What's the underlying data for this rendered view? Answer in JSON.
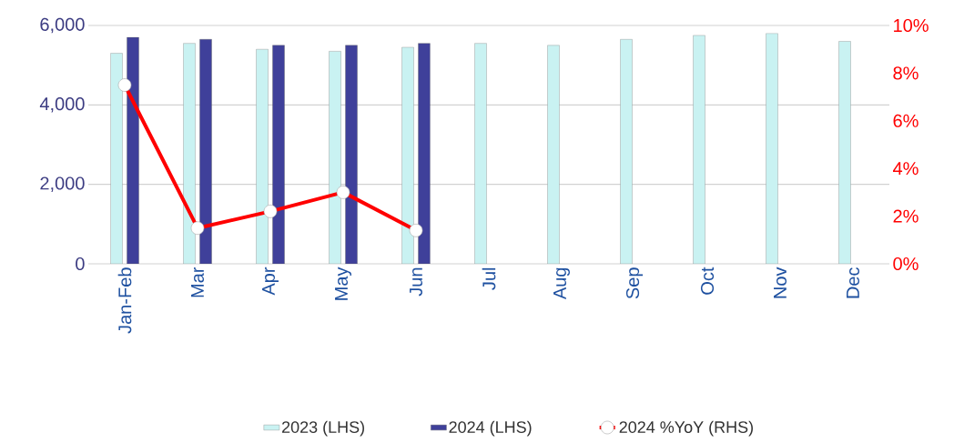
{
  "chart_data": {
    "type": "bar",
    "categories": [
      "Jan-Feb",
      "Mar",
      "Apr",
      "May",
      "Jun",
      "Jul",
      "Aug",
      "Sep",
      "Oct",
      "Nov",
      "Dec"
    ],
    "series": [
      {
        "name": "2023 (LHS)",
        "color": "#c9f2f2",
        "values": [
          5300,
          5550,
          5400,
          5350,
          5450,
          5550,
          5500,
          5650,
          5750,
          5800,
          5600
        ]
      },
      {
        "name": "2024 (LHS)",
        "color": "#3f409a",
        "values": [
          5700,
          5650,
          5500,
          5500,
          5550,
          null,
          null,
          null,
          null,
          null,
          null
        ]
      },
      {
        "name": "2024 %YoY (RHS)",
        "type": "line",
        "axis": "y2",
        "color": "#ff0000",
        "marker": "circle",
        "values": [
          7.5,
          1.5,
          2.2,
          3.0,
          1.4,
          null,
          null,
          null,
          null,
          null,
          null
        ]
      }
    ],
    "ylim": [
      0,
      6000
    ],
    "yticks": [
      0,
      {
        "value": 2000,
        "label": "2,000"
      },
      {
        "value": 4000,
        "label": "4,000"
      },
      {
        "value": 6000,
        "label": "6,000"
      }
    ],
    "y2lim": [
      0,
      10
    ],
    "y2ticks": [
      {
        "value": 0,
        "label": "0%"
      },
      {
        "value": 2,
        "label": "2%"
      },
      {
        "value": 4,
        "label": "4%"
      },
      {
        "value": 6,
        "label": "6%"
      },
      {
        "value": 8,
        "label": "8%"
      },
      {
        "value": 10,
        "label": "10%"
      }
    ],
    "grid": "y",
    "legend": "bottom"
  }
}
